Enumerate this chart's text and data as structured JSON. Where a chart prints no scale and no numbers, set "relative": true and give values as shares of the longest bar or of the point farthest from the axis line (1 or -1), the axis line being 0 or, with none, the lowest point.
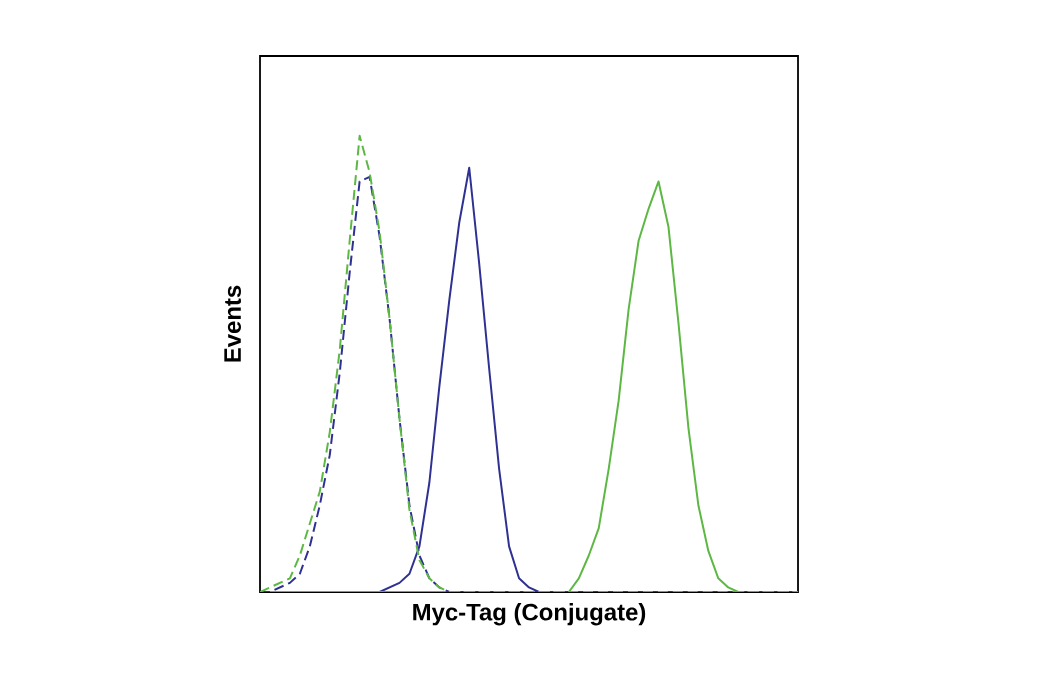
{
  "chart_data": {
    "type": "line",
    "relative": true,
    "xlabel": "Myc-Tag (Conjugate)",
    "ylabel": "Events",
    "marker": "none",
    "categories": [
      null,
      null,
      null,
      null,
      null,
      null,
      null,
      null,
      null,
      null,
      null,
      null,
      null,
      null,
      null,
      null,
      null,
      null,
      null,
      null,
      null,
      null,
      null,
      null,
      null,
      null,
      null,
      null,
      null,
      null,
      null,
      null,
      null,
      null,
      null,
      null,
      null,
      null,
      null,
      null,
      null,
      null,
      null,
      null,
      null,
      null,
      null,
      null,
      null,
      null,
      null,
      null,
      null,
      null,
      null
    ],
    "series": [
      {
        "color": "#2e3192",
        "line_style": "solid",
        "values": [
          0,
          0,
          0,
          0,
          0,
          0,
          0,
          0,
          0,
          0,
          0,
          0,
          0,
          0.01,
          0.02,
          0.04,
          0.1,
          0.24,
          0.45,
          0.64,
          0.81,
          0.93,
          0.72,
          0.49,
          0.27,
          0.1,
          0.03,
          0.01,
          0,
          0,
          0,
          0,
          0,
          0,
          0,
          0,
          0,
          0,
          0,
          0,
          0,
          0,
          0,
          0,
          0,
          0,
          0,
          0,
          0,
          0,
          0,
          0,
          0,
          0,
          0
        ]
      },
      {
        "color": "#5cb843",
        "line_style": "solid",
        "values": [
          0,
          0,
          0,
          0,
          0,
          0,
          0,
          0,
          0,
          0,
          0,
          0,
          0,
          0,
          0,
          0,
          0,
          0,
          0,
          0,
          0,
          0,
          0,
          0,
          0,
          0,
          0,
          0,
          0,
          0,
          0,
          0,
          0.03,
          0.08,
          0.14,
          0.27,
          0.42,
          0.62,
          0.77,
          0.84,
          0.9,
          0.8,
          0.59,
          0.36,
          0.19,
          0.09,
          0.03,
          0.01,
          0,
          0,
          0,
          0,
          0,
          0,
          0
        ]
      },
      {
        "color": "#2e3192",
        "line_style": "dashed",
        "values": [
          0,
          0,
          0.01,
          0.02,
          0.04,
          0.1,
          0.19,
          0.3,
          0.48,
          0.7,
          0.9,
          0.91,
          0.78,
          0.6,
          0.38,
          0.19,
          0.08,
          0.03,
          0.01,
          0,
          0,
          0,
          0,
          0,
          0,
          0,
          0,
          0,
          0,
          0,
          0,
          0,
          0,
          0,
          0,
          0,
          0,
          0,
          0,
          0,
          0,
          0,
          0,
          0,
          0,
          0,
          0,
          0,
          0,
          0,
          0,
          0,
          0,
          0,
          0
        ]
      },
      {
        "color": "#5cb843",
        "line_style": "dashed",
        "values": [
          0,
          0.01,
          0.02,
          0.03,
          0.08,
          0.15,
          0.22,
          0.35,
          0.53,
          0.77,
          1.0,
          0.92,
          0.79,
          0.6,
          0.38,
          0.18,
          0.07,
          0.03,
          0.01,
          0,
          0,
          0,
          0,
          0,
          0,
          0,
          0,
          0,
          0,
          0,
          0,
          0,
          0,
          0,
          0,
          0,
          0,
          0,
          0,
          0,
          0,
          0,
          0,
          0,
          0,
          0,
          0,
          0,
          0,
          0,
          0,
          0,
          0,
          0,
          0
        ]
      }
    ]
  }
}
